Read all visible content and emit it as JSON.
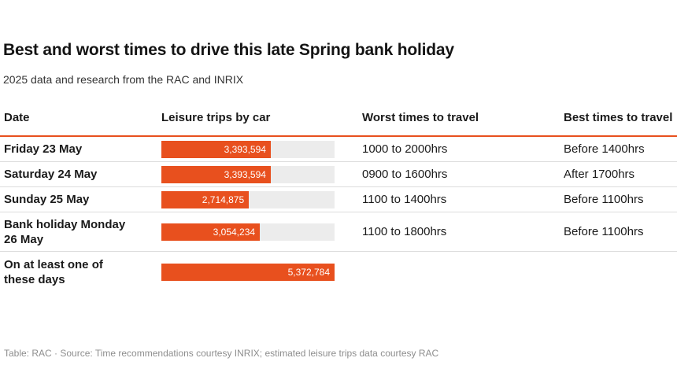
{
  "header": {
    "title": "Best and worst times to drive this late Spring bank holiday",
    "subtitle": "2025 data and research from the RAC and INRIX"
  },
  "table": {
    "columns": [
      "Date",
      "Leisure trips by car",
      "Worst times to travel",
      "Best times to travel"
    ],
    "rows": [
      {
        "date": "Friday 23 May",
        "trips": "3,393,594",
        "worst": "1000 to 2000hrs",
        "best": "Before 1400hrs"
      },
      {
        "date": "Saturday 24 May",
        "trips": "3,393,594",
        "worst": "0900 to 1600hrs",
        "best": "After 1700hrs"
      },
      {
        "date": "Sunday 25 May",
        "trips": "2,714,875",
        "worst": "1100 to 1400hrs",
        "best": "Before 1100hrs"
      },
      {
        "date": "Bank holiday Monday\n26 May",
        "trips": "3,054,234",
        "worst": "1100 to 1800hrs",
        "best": "Before 1100hrs"
      },
      {
        "date": "On at least one of\nthese days",
        "trips": "5,372,784",
        "worst": "",
        "best": ""
      }
    ]
  },
  "footer": {
    "credit": "Table: RAC · Source: Time recommendations courtesy INRIX; estimated leisure trips data courtesy RAC"
  },
  "colors": {
    "bar_fill": "#e8501e",
    "bar_track": "#ececec",
    "header_rule": "#e8501e",
    "row_separator": "#dcdcdc",
    "credit_text": "#8e8e8e"
  },
  "chart_data": {
    "type": "bar",
    "orientation": "horizontal",
    "title": "Best and worst times to drive this late Spring bank holiday",
    "subtitle": "2025 data and research from the RAC and INRIX",
    "series_label": "Leisure trips by car",
    "categories": [
      "Friday 23 May",
      "Saturday 24 May",
      "Sunday 25 May",
      "Bank holiday Monday 26 May",
      "On at least one of these days"
    ],
    "values": [
      3393594,
      3393594,
      2714875,
      3054234,
      5372784
    ],
    "value_labels": [
      "3,393,594",
      "3,393,594",
      "2,714,875",
      "3,054,234",
      "5,372,784"
    ],
    "worst_times": [
      "1000 to 2000hrs",
      "0900 to 1600hrs",
      "1100 to 1400hrs",
      "1100 to 1800hrs",
      ""
    ],
    "best_times": [
      "Before 1400hrs",
      "After 1700hrs",
      "Before 1100hrs",
      "Before 1100hrs",
      ""
    ],
    "xlim": [
      0,
      5372784
    ],
    "grid": false,
    "legend": "none"
  }
}
